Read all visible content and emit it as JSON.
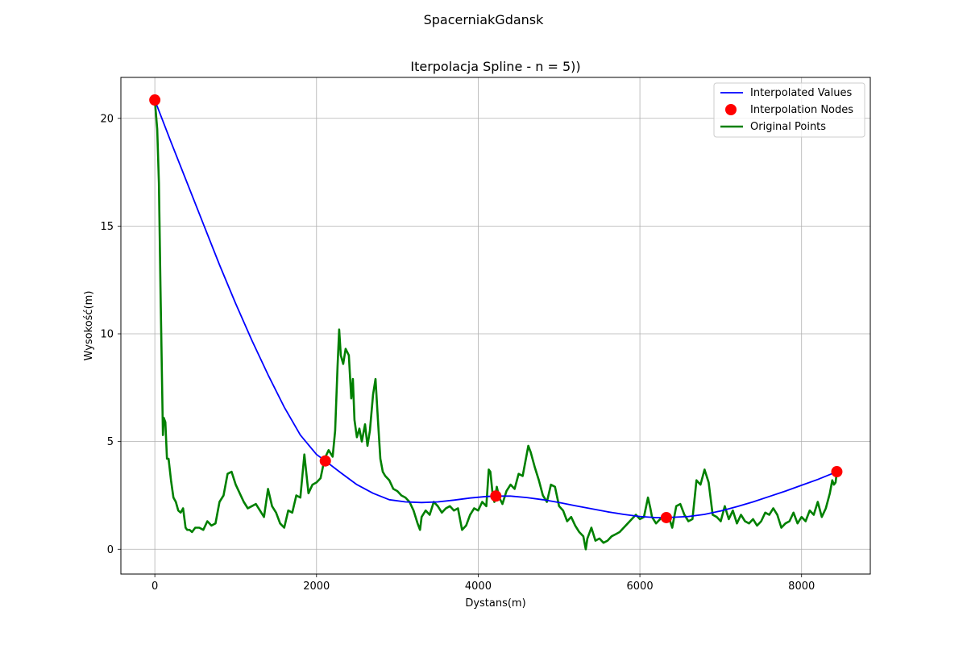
{
  "suptitle": "SpacerniakGdansk",
  "chart_data": {
    "type": "line",
    "title": "Iterpolacja Spline - n = 5))",
    "xlabel": "Dystans(m)",
    "ylabel": "Wysokość(m)",
    "xlim": [
      -420,
      8850
    ],
    "ylim": [
      -1.15,
      21.9
    ],
    "xticks": [
      0,
      2000,
      4000,
      6000,
      8000
    ],
    "yticks": [
      0,
      5,
      10,
      15,
      20
    ],
    "grid": true,
    "legend_position": "top-right",
    "legend": [
      "Interpolated Values",
      "Interpolation Nodes",
      "Original Points"
    ],
    "colors": {
      "interpolated": "#0000ff",
      "nodes": "#ff0000",
      "original": "#008000"
    },
    "series": [
      {
        "name": "Interpolated Values",
        "kind": "line",
        "x": [
          0,
          200,
          400,
          600,
          800,
          1000,
          1200,
          1400,
          1600,
          1800,
          2000,
          2109,
          2300,
          2500,
          2700,
          2900,
          3100,
          3300,
          3500,
          3700,
          3900,
          4100,
          4218,
          4400,
          4600,
          4800,
          5000,
          5200,
          5400,
          5600,
          5800,
          6000,
          6200,
          6327,
          6600,
          6800,
          7000,
          7200,
          7400,
          7600,
          7800,
          8000,
          8200,
          8436
        ],
        "y": [
          20.85,
          18.9,
          17.0,
          15.1,
          13.2,
          11.4,
          9.7,
          8.1,
          6.6,
          5.3,
          4.4,
          4.1,
          3.55,
          3.0,
          2.6,
          2.3,
          2.2,
          2.17,
          2.2,
          2.28,
          2.38,
          2.45,
          2.47,
          2.47,
          2.4,
          2.3,
          2.17,
          2.02,
          1.88,
          1.74,
          1.62,
          1.52,
          1.47,
          1.47,
          1.52,
          1.62,
          1.78,
          1.98,
          2.2,
          2.45,
          2.7,
          2.97,
          3.24,
          3.6
        ]
      },
      {
        "name": "Interpolation Nodes",
        "kind": "scatter",
        "x": [
          0,
          2109,
          4218,
          6327,
          8436
        ],
        "y": [
          20.85,
          4.1,
          2.47,
          1.47,
          3.6
        ]
      },
      {
        "name": "Original Points",
        "kind": "line",
        "x": [
          0,
          30,
          50,
          70,
          90,
          100,
          110,
          130,
          150,
          170,
          200,
          230,
          260,
          290,
          320,
          350,
          380,
          400,
          430,
          460,
          500,
          550,
          600,
          650,
          700,
          750,
          800,
          850,
          900,
          950,
          1000,
          1050,
          1100,
          1150,
          1200,
          1250,
          1300,
          1350,
          1400,
          1450,
          1500,
          1550,
          1600,
          1650,
          1700,
          1750,
          1800,
          1850,
          1900,
          1950,
          2000,
          2050,
          2100,
          2150,
          2200,
          2230,
          2260,
          2280,
          2300,
          2330,
          2360,
          2400,
          2430,
          2450,
          2470,
          2500,
          2530,
          2560,
          2600,
          2630,
          2660,
          2700,
          2730,
          2760,
          2790,
          2820,
          2850,
          2900,
          2950,
          3000,
          3050,
          3100,
          3150,
          3200,
          3250,
          3280,
          3300,
          3350,
          3400,
          3450,
          3500,
          3550,
          3600,
          3650,
          3700,
          3750,
          3800,
          3850,
          3900,
          3950,
          4000,
          4050,
          4100,
          4130,
          4150,
          4180,
          4200,
          4230,
          4260,
          4300,
          4350,
          4400,
          4450,
          4500,
          4550,
          4600,
          4620,
          4650,
          4700,
          4750,
          4800,
          4850,
          4900,
          4950,
          5000,
          5050,
          5100,
          5150,
          5200,
          5250,
          5300,
          5330,
          5350,
          5380,
          5400,
          5450,
          5500,
          5550,
          5600,
          5650,
          5700,
          5750,
          5800,
          5850,
          5900,
          5950,
          6000,
          6050,
          6100,
          6130,
          6150,
          6200,
          6250,
          6280,
          6300,
          6350,
          6400,
          6450,
          6500,
          6550,
          6600,
          6650,
          6700,
          6750,
          6800,
          6850,
          6880,
          6900,
          6950,
          7000,
          7050,
          7100,
          7150,
          7200,
          7250,
          7300,
          7350,
          7400,
          7450,
          7500,
          7550,
          7600,
          7650,
          7700,
          7750,
          7800,
          7850,
          7900,
          7950,
          8000,
          8050,
          8100,
          8150,
          8200,
          8250,
          8300,
          8350,
          8380,
          8400,
          8420,
          8436
        ],
        "y": [
          20.85,
          19.5,
          17.0,
          12.0,
          7.5,
          5.3,
          6.1,
          5.9,
          4.2,
          4.2,
          3.2,
          2.4,
          2.2,
          1.8,
          1.7,
          1.9,
          1.0,
          0.9,
          0.9,
          0.8,
          1.0,
          1.0,
          0.9,
          1.3,
          1.1,
          1.2,
          2.2,
          2.5,
          3.5,
          3.6,
          3.0,
          2.6,
          2.2,
          1.9,
          2.0,
          2.1,
          1.8,
          1.5,
          2.8,
          2.0,
          1.7,
          1.2,
          1.0,
          1.8,
          1.7,
          2.5,
          2.4,
          4.4,
          2.6,
          3.0,
          3.1,
          3.3,
          4.2,
          4.6,
          4.3,
          5.5,
          8.5,
          10.2,
          9.0,
          8.6,
          9.3,
          9.0,
          7.0,
          7.9,
          6.0,
          5.2,
          5.6,
          5.0,
          5.8,
          4.8,
          5.5,
          7.2,
          7.9,
          6.0,
          4.2,
          3.6,
          3.4,
          3.2,
          2.8,
          2.7,
          2.5,
          2.4,
          2.2,
          1.8,
          1.2,
          0.9,
          1.5,
          1.8,
          1.6,
          2.2,
          2.0,
          1.7,
          1.9,
          2.0,
          1.8,
          1.9,
          0.9,
          1.1,
          1.6,
          1.9,
          1.8,
          2.2,
          2.0,
          3.7,
          3.6,
          2.5,
          2.2,
          2.9,
          2.4,
          2.1,
          2.7,
          3.0,
          2.8,
          3.5,
          3.4,
          4.4,
          4.8,
          4.5,
          3.8,
          3.2,
          2.5,
          2.2,
          3.0,
          2.9,
          2.0,
          1.8,
          1.3,
          1.5,
          1.1,
          0.8,
          0.6,
          0.0,
          0.5,
          0.8,
          1.0,
          0.4,
          0.5,
          0.3,
          0.4,
          0.6,
          0.7,
          0.8,
          1.0,
          1.2,
          1.4,
          1.6,
          1.4,
          1.5,
          2.4,
          1.9,
          1.5,
          1.2,
          1.4,
          1.5,
          1.6,
          1.6,
          1.0,
          2.0,
          2.1,
          1.6,
          1.3,
          1.4,
          3.2,
          3.0,
          3.7,
          3.1,
          2.2,
          1.6,
          1.5,
          1.3,
          2.0,
          1.4,
          1.8,
          1.2,
          1.6,
          1.3,
          1.2,
          1.4,
          1.1,
          1.3,
          1.7,
          1.6,
          1.9,
          1.6,
          1.0,
          1.2,
          1.3,
          1.7,
          1.2,
          1.5,
          1.3,
          1.8,
          1.6,
          2.2,
          1.5,
          1.9,
          2.6,
          3.2,
          3.0,
          3.1,
          3.6
        ]
      }
    ]
  }
}
